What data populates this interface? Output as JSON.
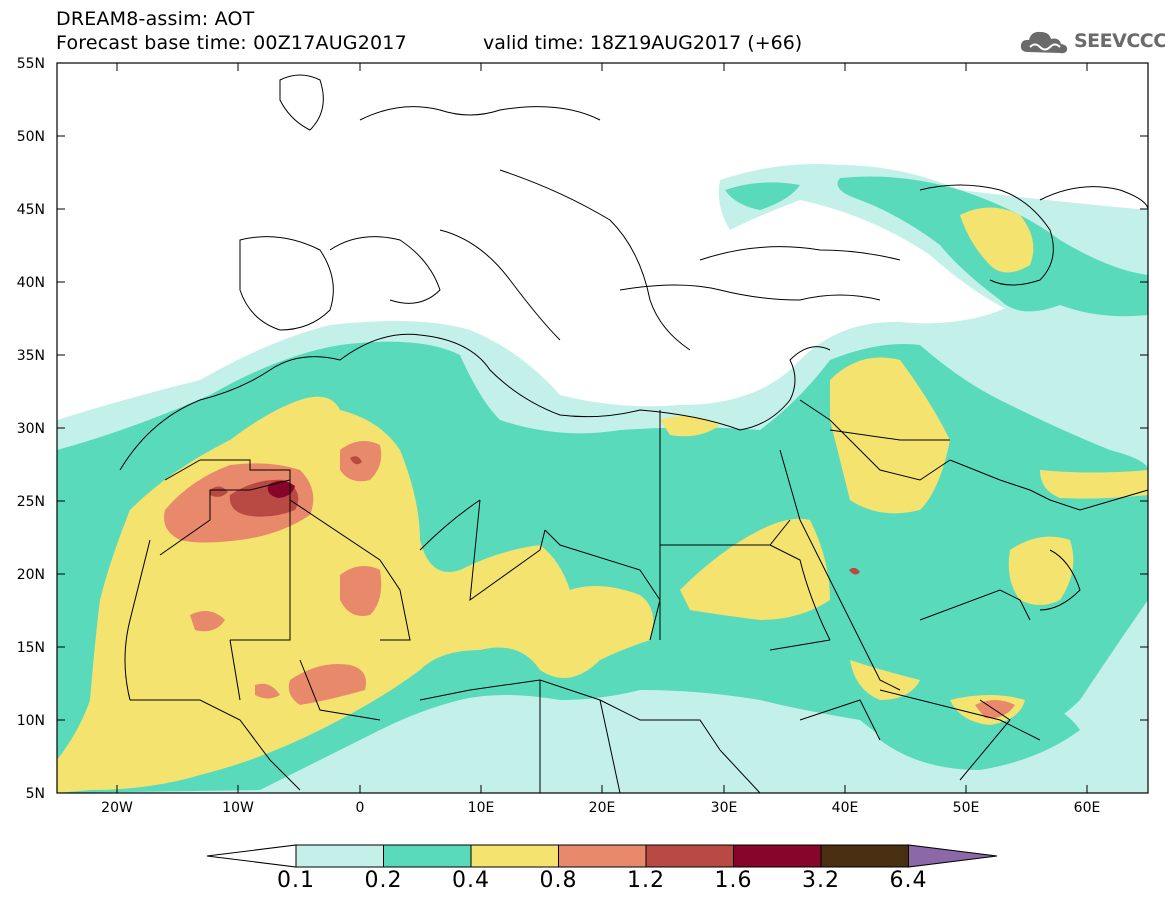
{
  "header": {
    "title": "DREAM8-assim: AOT",
    "forecast_base": "Forecast base time: 00Z17AUG2017",
    "valid_time": "valid time: 18Z19AUG2017 (+66)",
    "logo_text": "SEEVCCC"
  },
  "axes": {
    "lat_labels": [
      "55N",
      "50N",
      "45N",
      "40N",
      "35N",
      "30N",
      "25N",
      "20N",
      "15N",
      "10N",
      "5N"
    ],
    "lon_labels": [
      "20W",
      "10W",
      "0",
      "10E",
      "20E",
      "30E",
      "40E",
      "50E",
      "60E"
    ],
    "lat_range": [
      5,
      55
    ],
    "lon_range": [
      -25,
      65
    ]
  },
  "colorbar": {
    "labels": [
      "0.1",
      "0.2",
      "0.4",
      "0.8",
      "1.2",
      "1.6",
      "3.2",
      "6.4"
    ],
    "colors": [
      "#ffffff",
      "#c4f0ea",
      "#59dbbb",
      "#f5e36f",
      "#e8896b",
      "#b84a43",
      "#87052a",
      "#4a2e12",
      "#8d68a8"
    ]
  }
}
